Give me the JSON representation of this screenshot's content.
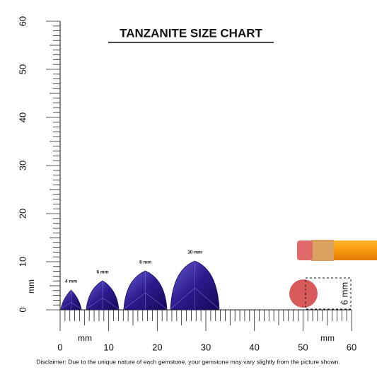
{
  "header": {
    "title": "TANZANITE SIZE CHART"
  },
  "ruler": {
    "vertical_labels": [
      0,
      10,
      20,
      30,
      40,
      50,
      60
    ],
    "horizontal_labels": [
      0,
      10,
      20,
      30,
      40,
      50,
      60
    ],
    "unit_left": "mm",
    "unit_bottom_left": "mm",
    "unit_bottom_right": "mm"
  },
  "gems": [
    {
      "label": "4 mm"
    },
    {
      "label": "6 mm"
    },
    {
      "label": "8 mm"
    },
    {
      "label": "10 mm"
    }
  ],
  "eraser": {
    "label": "6 mm"
  },
  "footer": {
    "disclaimer": "Disclaimer: Due to the unique nature of each gemstone, your gemstone may vary slightly from the picture shown."
  }
}
